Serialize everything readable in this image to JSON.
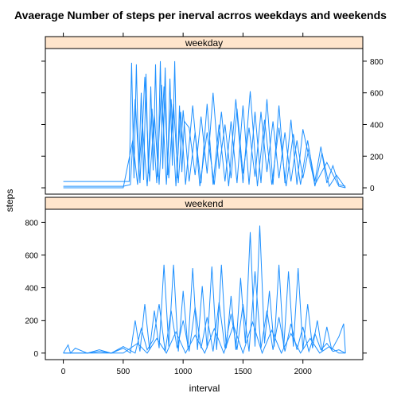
{
  "chart_data": {
    "type": "line",
    "title": "Avaerage Number of steps per inerval acrros weekdays and weekends",
    "xlabel": "interval",
    "ylabel": "steps",
    "xlim": [
      -150,
      2500
    ],
    "ylim": [
      -40,
      880
    ],
    "x_ticks": [
      0,
      500,
      1000,
      1500,
      2000
    ],
    "x_tick_labels": [
      "0",
      "500",
      "1000",
      "1500",
      "2000"
    ],
    "y_ticks": [
      0,
      200,
      400,
      600,
      800
    ],
    "y_tick_labels": [
      "0",
      "200",
      "400",
      "600",
      "800"
    ],
    "grid": false,
    "colors": {
      "line": "#1e90ff",
      "strip": "#ffe5cc",
      "frame": "#000000"
    },
    "panels": [
      {
        "strip_label": "weekday",
        "y_axis_side": "right",
        "series": [
          {
            "x": [
              0,
              100,
              200,
              300,
              400,
              500,
              550,
              570,
              590,
              610,
              630,
              650,
              670,
              690,
              710,
              730,
              750,
              770,
              790,
              810,
              830,
              850,
              870,
              890,
              910,
              930,
              950,
              970,
              990,
              1010,
              1050,
              1100,
              1150,
              1200,
              1250,
              1300,
              1350,
              1400,
              1450,
              1500,
              1550,
              1600,
              1650,
              1700,
              1750,
              1800,
              1850,
              1900,
              1950,
              2000,
              2050,
              2100,
              2150,
              2200,
              2250,
              2300,
              2355
            ],
            "y": [
              40,
              40,
              40,
              40,
              40,
              40,
              40,
              790,
              60,
              780,
              100,
              600,
              50,
              720,
              90,
              640,
              110,
              780,
              70,
              800,
              120,
              760,
              80,
              690,
              140,
              800,
              60,
              520,
              100,
              420,
              380,
              80,
              450,
              90,
              600,
              120,
              400,
              60,
              500,
              90,
              380,
              70,
              480,
              100,
              420,
              60,
              350,
              40,
              300,
              60,
              250,
              40,
              260,
              30,
              140,
              20,
              10
            ]
          },
          {
            "x": [
              0,
              100,
              200,
              300,
              400,
              500,
              560,
              600,
              640,
              680,
              720,
              760,
              800,
              840,
              880,
              920,
              960,
              1000,
              1050,
              1100,
              1150,
              1200,
              1250,
              1300,
              1350,
              1400,
              1450,
              1500,
              1550,
              1600,
              1650,
              1700,
              1750,
              1800,
              1850,
              1900,
              1950,
              2000,
              2100,
              2200,
              2300,
              2355
            ],
            "y": [
              10,
              10,
              10,
              10,
              10,
              10,
              20,
              560,
              30,
              700,
              40,
              460,
              20,
              640,
              60,
              530,
              30,
              490,
              40,
              350,
              30,
              530,
              20,
              400,
              40,
              420,
              30,
              520,
              20,
              480,
              30,
              560,
              20,
              520,
              30,
              430,
              20,
              370,
              20,
              160,
              10,
              0
            ]
          },
          {
            "x": [
              0,
              100,
              200,
              300,
              400,
              500,
              580,
              620,
              660,
              700,
              740,
              780,
              820,
              860,
              900,
              940,
              980,
              1020,
              1080,
              1140,
              1200,
              1260,
              1320,
              1380,
              1440,
              1500,
              1560,
              1620,
              1680,
              1740,
              1800,
              1860,
              1920,
              1980,
              2040,
              2100,
              2160,
              2220,
              2280,
              2355
            ],
            "y": [
              0,
              0,
              0,
              0,
              0,
              0,
              300,
              20,
              400,
              10,
              500,
              30,
              650,
              20,
              560,
              10,
              480,
              20,
              520,
              10,
              350,
              20,
              480,
              10,
              560,
              30,
              610,
              10,
              430,
              20,
              380,
              10,
              340,
              20,
              300,
              10,
              220,
              10,
              80,
              0
            ]
          }
        ]
      },
      {
        "strip_label": "weekend",
        "y_axis_side": "left",
        "series": [
          {
            "x": [
              0,
              40,
              60,
              100,
              200,
              300,
              400,
              500,
              560,
              600,
              640,
              680,
              720,
              760,
              800,
              840,
              880,
              920,
              960,
              1000,
              1040,
              1080,
              1120,
              1160,
              1200,
              1240,
              1280,
              1320,
              1360,
              1400,
              1440,
              1480,
              1520,
              1560,
              1600,
              1640,
              1680,
              1720,
              1760,
              1800,
              1840,
              1880,
              1920,
              1960,
              2000,
              2040,
              2080,
              2120,
              2160,
              2200,
              2240,
              2300,
              2340,
              2355
            ],
            "y": [
              0,
              50,
              0,
              30,
              0,
              10,
              0,
              30,
              0,
              200,
              10,
              300,
              20,
              260,
              30,
              540,
              40,
              540,
              10,
              380,
              30,
              520,
              20,
              410,
              30,
              530,
              20,
              540,
              30,
              350,
              20,
              460,
              60,
              740,
              40,
              780,
              60,
              380,
              40,
              540,
              30,
              500,
              40,
              520,
              20,
              300,
              30,
              200,
              10,
              160,
              20,
              100,
              180,
              0
            ]
          },
          {
            "x": [
              0,
              100,
              200,
              300,
              400,
              500,
              600,
              650,
              700,
              750,
              800,
              850,
              900,
              950,
              1000,
              1050,
              1100,
              1150,
              1200,
              1250,
              1300,
              1350,
              1400,
              1450,
              1500,
              1550,
              1600,
              1650,
              1700,
              1750,
              1800,
              1850,
              1900,
              1950,
              2000,
              2050,
              2100,
              2150,
              2200,
              2250,
              2300,
              2355
            ],
            "y": [
              0,
              0,
              0,
              20,
              0,
              40,
              0,
              150,
              20,
              80,
              300,
              10,
              260,
              30,
              200,
              10,
              280,
              30,
              220,
              10,
              310,
              30,
              240,
              20,
              300,
              10,
              500,
              30,
              260,
              20,
              220,
              10,
              180,
              20,
              160,
              10,
              120,
              20,
              60,
              10,
              20,
              0
            ]
          },
          {
            "x": [
              0,
              100,
              200,
              300,
              400,
              500,
              620,
              700,
              780,
              860,
              940,
              1020,
              1100,
              1180,
              1260,
              1340,
              1420,
              1500,
              1580,
              1660,
              1740,
              1820,
              1900,
              1980,
              2060,
              2140,
              2220,
              2300,
              2355
            ],
            "y": [
              0,
              0,
              0,
              0,
              0,
              0,
              60,
              0,
              90,
              0,
              130,
              0,
              110,
              0,
              150,
              0,
              170,
              0,
              190,
              0,
              140,
              0,
              120,
              0,
              90,
              0,
              40,
              0,
              0
            ]
          }
        ]
      }
    ]
  }
}
